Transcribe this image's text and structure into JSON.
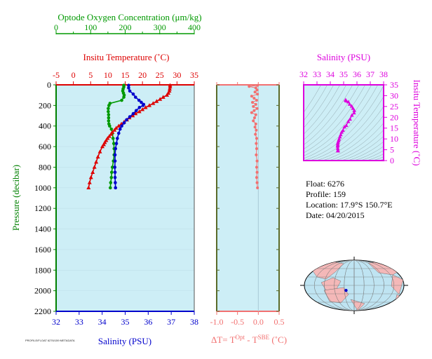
{
  "colors": {
    "oxygen": "#009900",
    "temperature": "#dd0000",
    "salinity": "#0000cc",
    "delta_t": "#f27070",
    "ts_plot": "#dd00dd",
    "pressure_axis": "#008000",
    "panel_fill": "#cdeef6",
    "map_ocean": "#bfe4f2",
    "map_land": "#f4b8b8"
  },
  "footnote": "PROFILE/FLOAT 6276/159 METADATA",
  "info": {
    "float": "Float:  6276",
    "profile": "Profile:  159",
    "location": "Location:  17.9°S  150.7°E",
    "date": "Date:  04/20/2015"
  },
  "chart_data": [
    {
      "type": "line",
      "panel": "profiles",
      "y_axis": {
        "label": "Pressure (decibar)",
        "range": [
          0,
          2200
        ],
        "inverted": true,
        "ticks": [
          0,
          200,
          400,
          600,
          800,
          1000,
          1200,
          1400,
          1600,
          1800,
          2000,
          2200
        ]
      },
      "axes": {
        "oxygen": {
          "label": "Optode Oxygen Concentration (μm/kg)",
          "range": [
            0,
            400
          ],
          "ticks": [
            0,
            100,
            200,
            300,
            400
          ]
        },
        "temperature": {
          "label": "Insitu Temperature (˚C)",
          "range": [
            -5,
            35
          ],
          "ticks": [
            -5,
            0,
            5,
            10,
            15,
            20,
            25,
            30,
            35
          ]
        },
        "salinity": {
          "label": "Salinity (PSU)",
          "range": [
            32,
            38
          ],
          "ticks": [
            32,
            33,
            34,
            35,
            36,
            37,
            38
          ]
        }
      },
      "series": [
        {
          "name": "oxygen",
          "axis": "oxygen",
          "marker": "circle",
          "pressure": [
            5,
            20,
            40,
            60,
            80,
            100,
            120,
            150,
            180,
            200,
            230,
            260,
            290,
            320,
            350,
            380,
            400,
            430,
            470,
            520,
            570,
            620,
            680,
            740,
            800,
            850,
            900,
            950,
            1000
          ],
          "values": [
            196,
            196,
            194,
            193,
            195,
            197,
            196,
            190,
            156,
            153,
            151,
            151,
            152,
            152,
            152,
            153,
            155,
            160,
            163,
            165,
            167,
            168,
            168,
            166,
            163,
            161,
            160,
            158,
            157
          ]
        },
        {
          "name": "temperature",
          "axis": "temperature",
          "marker": "triangle",
          "pressure": [
            5,
            20,
            40,
            60,
            80,
            100,
            120,
            140,
            160,
            180,
            200,
            220,
            240,
            260,
            280,
            300,
            320,
            340,
            360,
            380,
            400,
            420,
            440,
            460,
            480,
            500,
            520,
            540,
            560,
            580,
            600,
            650,
            700,
            750,
            800,
            850,
            900,
            950,
            1000
          ],
          "values": [
            28.0,
            28.0,
            27.9,
            27.8,
            27.5,
            27.1,
            26.0,
            25.1,
            24.1,
            23.1,
            22.0,
            20.9,
            20.0,
            19.1,
            18.0,
            17.2,
            16.2,
            15.5,
            14.7,
            13.9,
            13.1,
            12.4,
            11.9,
            11.3,
            10.9,
            10.4,
            9.9,
            9.5,
            9.1,
            8.8,
            8.4,
            7.7,
            7.1,
            6.6,
            6.1,
            5.6,
            5.1,
            4.7,
            4.4
          ]
        },
        {
          "name": "salinity",
          "axis": "salinity",
          "marker": "circle",
          "pressure": [
            5,
            30,
            60,
            90,
            120,
            150,
            170,
            190,
            200,
            220,
            250,
            280,
            310,
            340,
            370,
            400,
            430,
            470,
            520,
            570,
            620,
            680,
            740,
            800,
            850,
            900,
            950,
            1000
          ],
          "values": [
            35.15,
            35.15,
            35.2,
            35.35,
            35.45,
            35.6,
            35.7,
            35.8,
            35.78,
            35.62,
            35.48,
            35.35,
            35.2,
            35.06,
            34.95,
            34.85,
            34.78,
            34.72,
            34.66,
            34.62,
            34.58,
            34.56,
            34.56,
            34.55,
            34.56,
            34.56,
            34.57,
            34.58
          ]
        }
      ]
    },
    {
      "type": "line",
      "panel": "delta_t",
      "x_axis": {
        "label_main": "ΔT= T",
        "sup_opt": "Opt",
        "label_mid": " - T",
        "sup_sbe": "SBE",
        "label_end": " (˚C)",
        "range": [
          -1.0,
          0.5
        ],
        "ticks": [
          -1.0,
          -0.5,
          0.0,
          0.5
        ]
      },
      "y_axis": {
        "range": [
          0,
          2200
        ],
        "inverted": true
      },
      "series": [
        {
          "name": "delta_t",
          "pressure": [
            5,
            15,
            30,
            50,
            70,
            90,
            110,
            130,
            150,
            170,
            190,
            210,
            230,
            250,
            270,
            290,
            320,
            350,
            380,
            410,
            440,
            480,
            520,
            570,
            620,
            680,
            740,
            800,
            850,
            900,
            950,
            1000
          ],
          "values": [
            -0.02,
            -0.22,
            -0.06,
            -0.03,
            -0.08,
            -0.02,
            -0.16,
            -0.1,
            -0.04,
            -0.14,
            -0.06,
            -0.12,
            -0.03,
            -0.1,
            -0.16,
            -0.06,
            -0.09,
            -0.12,
            -0.06,
            -0.08,
            -0.05,
            -0.07,
            -0.04,
            -0.05,
            -0.04,
            -0.05,
            -0.03,
            -0.04,
            -0.03,
            -0.04,
            -0.03,
            -0.02
          ]
        }
      ]
    },
    {
      "type": "scatter",
      "panel": "ts",
      "title": "Salinity (PSU)",
      "x_axis": {
        "label": "Salinity (PSU)",
        "range": [
          32,
          38
        ],
        "ticks": [
          32,
          33,
          34,
          35,
          36,
          37,
          38
        ]
      },
      "y_axis": {
        "label": "Insitu Temperature (˚C)",
        "range": [
          0,
          35
        ],
        "ticks": [
          0,
          5,
          10,
          15,
          20,
          25,
          30,
          35
        ]
      },
      "series": [
        {
          "name": "ts",
          "salinity": [
            35.15,
            35.15,
            35.2,
            35.35,
            35.45,
            35.6,
            35.7,
            35.8,
            35.78,
            35.62,
            35.48,
            35.35,
            35.2,
            35.06,
            34.95,
            34.85,
            34.78,
            34.72,
            34.66,
            34.62,
            34.58,
            34.56,
            34.56,
            34.55,
            34.56,
            34.57,
            34.58
          ],
          "temperature": [
            28.0,
            27.9,
            27.5,
            27.1,
            26.0,
            25.1,
            24.1,
            23.1,
            22.0,
            20.9,
            19.1,
            18.0,
            16.2,
            15.5,
            13.9,
            13.1,
            11.9,
            10.9,
            9.9,
            9.1,
            8.4,
            7.7,
            7.1,
            6.6,
            5.6,
            4.7,
            4.4
          ]
        }
      ]
    },
    {
      "type": "map",
      "panel": "location_map",
      "marker": {
        "lat": -17.9,
        "lon": 150.7
      }
    }
  ]
}
